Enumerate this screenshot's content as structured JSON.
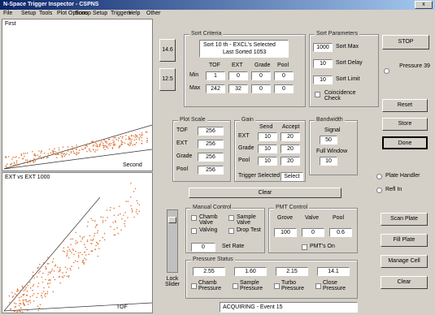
{
  "window": {
    "title": "N-Space Trigger Inspector - CSPNS"
  },
  "menu": [
    "File",
    "Setup",
    "Tools",
    "Plot Options",
    "Scoop",
    "Setup",
    "Triggers",
    "Help",
    "Other"
  ],
  "plots": {
    "top": {
      "label": "First",
      "x_label": "Second"
    },
    "bottom": {
      "label": "EXT vs EXT 1000",
      "x_label": "TOF"
    }
  },
  "side_buttons": [
    "14.6",
    "12.5"
  ],
  "sort_criteria": {
    "title": "Sort Criteria",
    "status": "Sort 10 th - EXCL's Selected",
    "last_sorted": "Last Sorted 1053",
    "columns": [
      "TOF",
      "EXT",
      "Grade",
      "Pool"
    ],
    "rows": [
      {
        "label": "Min",
        "values": [
          "1",
          "0",
          "0",
          "0"
        ]
      },
      {
        "label": "Max",
        "values": [
          "242",
          "32",
          "0",
          "0"
        ]
      }
    ]
  },
  "sort_parameters": {
    "title": "Sort Parameters",
    "items": [
      {
        "value": "1000",
        "label": "Sort Max"
      },
      {
        "value": "10",
        "label": "Sort Delay"
      },
      {
        "value": "10",
        "label": "Sort Limit"
      }
    ],
    "check": "Coincidence Check"
  },
  "buttons": {
    "stop": "STOP",
    "reset": "Reset",
    "store": "Store",
    "done": "Done",
    "clear": "Clear"
  },
  "pressure_radio": "Pressure 39",
  "plot_scale": {
    "title": "Plot Scale",
    "rows": [
      {
        "label": "TOF",
        "value": "256"
      },
      {
        "label": "EXT",
        "value": "256"
      },
      {
        "label": "Grade",
        "value": "256"
      },
      {
        "label": "Pool",
        "value": "256"
      }
    ]
  },
  "gain": {
    "title": "Gain",
    "columns": [
      "Send",
      "Accept"
    ],
    "rows": [
      {
        "label": "EXT",
        "values": [
          "10",
          "20"
        ]
      },
      {
        "label": "Grade",
        "values": [
          "10",
          "20"
        ]
      },
      {
        "label": "Pool",
        "values": [
          "10",
          "20"
        ]
      }
    ],
    "trigger_label": "Trigger Selected",
    "trigger_value": "Select"
  },
  "bandwidth": {
    "title": "Bandwidth",
    "signal_label": "Signal",
    "signal_value": "50",
    "window_label": "Full Window",
    "window_value": "10"
  },
  "radios": [
    "Plate Handler",
    "Refl In"
  ],
  "slider_label": "Lock Slider",
  "manual_control": {
    "title": "Manual Control",
    "checks": [
      "Chamb Valve",
      "Sample Valve",
      "Valving",
      "Drop Test"
    ],
    "rate_value": "0",
    "rate_label": "Set Rate"
  },
  "pmt_control": {
    "title": "PMT Control",
    "columns": [
      "Grove",
      "Valve",
      "Pool"
    ],
    "values": [
      "100",
      "0",
      "0.6"
    ],
    "check": "PMT's On"
  },
  "pressure_status": {
    "title": "Pressure Status",
    "values": [
      "2.55",
      "1.60",
      "2.15",
      "14.1"
    ],
    "checks": [
      "Chamb Pressure",
      "Sample Pressure",
      "Turbo Pressure",
      "Close Pressure"
    ]
  },
  "action_buttons": [
    "Scan Plate",
    "Fill Plate",
    "Manage Cell",
    "Clear"
  ],
  "status_bar": "ACQUIRING - Event 15"
}
